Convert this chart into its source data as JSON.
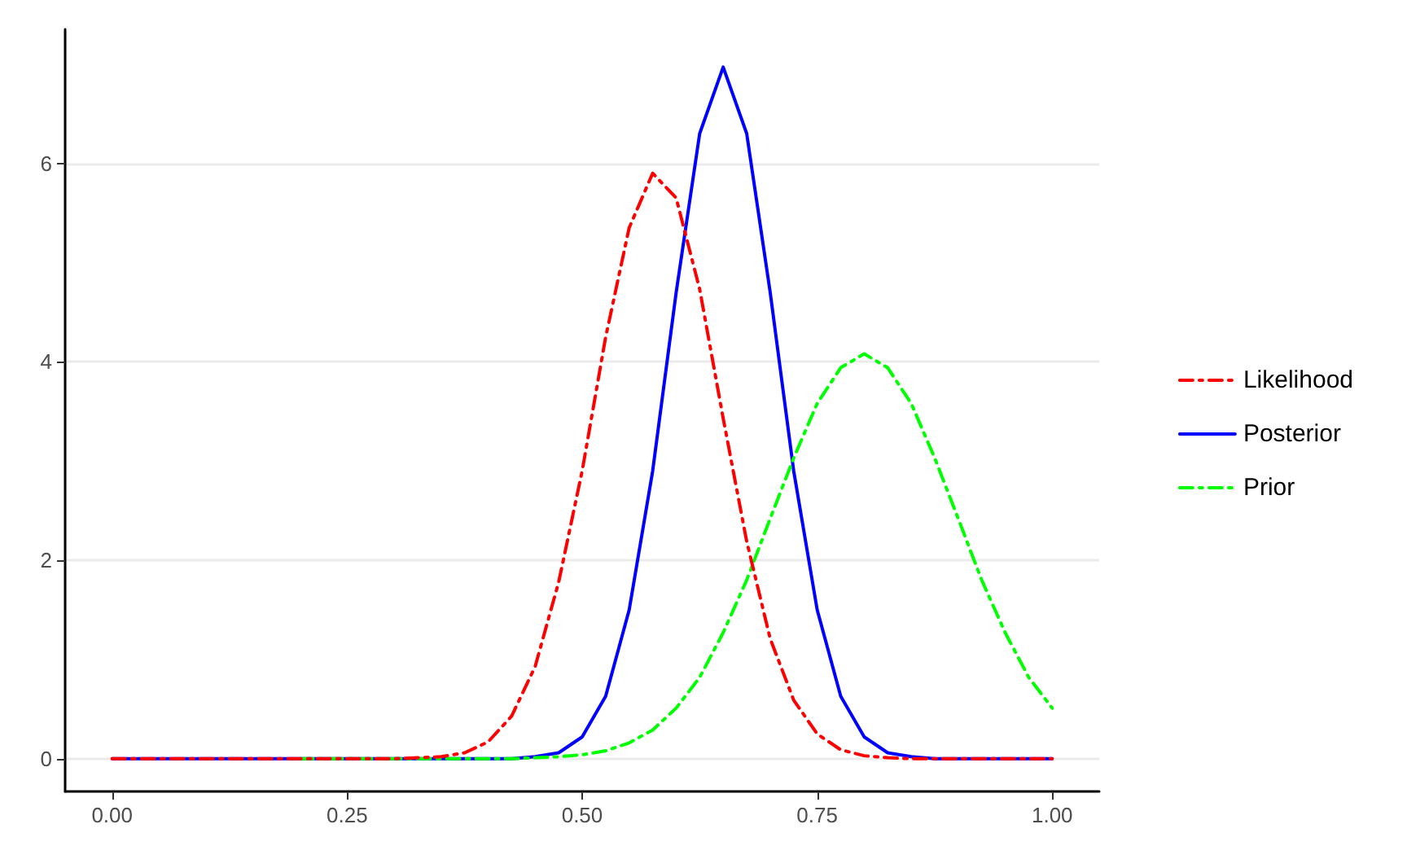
{
  "chart_data": {
    "type": "line",
    "x": [
      0,
      0.1,
      0.2,
      0.3,
      0.35,
      0.375,
      0.4,
      0.425,
      0.45,
      0.475,
      0.5,
      0.525,
      0.55,
      0.575,
      0.6,
      0.625,
      0.65,
      0.675,
      0.7,
      0.725,
      0.75,
      0.775,
      0.8,
      0.825,
      0.85,
      0.875,
      0.9,
      0.925,
      0.95,
      0.975,
      1.0
    ],
    "series": [
      {
        "name": "Likelihood",
        "color": "#ff0000",
        "line_style": "dashed",
        "values": [
          0,
          0,
          0,
          0,
          0.02,
          0.06,
          0.17,
          0.43,
          0.93,
          1.78,
          2.9,
          4.25,
          5.35,
          5.9,
          5.65,
          4.73,
          3.43,
          2.19,
          1.21,
          0.59,
          0.25,
          0.09,
          0.03,
          0.01,
          0,
          0,
          0,
          0,
          0,
          0,
          0
        ]
      },
      {
        "name": "Posterior",
        "color": "#0000ff",
        "line_style": "solid",
        "values": [
          0,
          0,
          0,
          0,
          0,
          0,
          0,
          0,
          0.02,
          0.06,
          0.22,
          0.63,
          1.5,
          2.9,
          4.7,
          6.3,
          6.97,
          6.3,
          4.7,
          2.9,
          1.5,
          0.63,
          0.22,
          0.06,
          0.02,
          0,
          0,
          0,
          0,
          0,
          0
        ]
      },
      {
        "name": "Prior",
        "color": "#00ff00",
        "line_style": "dashed",
        "values": [
          null,
          null,
          0,
          0,
          0,
          0,
          0,
          0,
          0.01,
          0.02,
          0.04,
          0.08,
          0.16,
          0.29,
          0.51,
          0.82,
          1.27,
          1.8,
          2.42,
          3.03,
          3.58,
          3.94,
          4.08,
          3.94,
          3.58,
          3.03,
          2.42,
          1.8,
          1.27,
          0.82,
          0.51
        ]
      }
    ],
    "xlim": [
      -0.05,
      1.05
    ],
    "xticks": [
      {
        "value": 0,
        "label": "0.00"
      },
      {
        "value": 0.25,
        "label": "0.25"
      },
      {
        "value": 0.5,
        "label": "0.50"
      },
      {
        "value": 0.75,
        "label": "0.75"
      },
      {
        "value": 1,
        "label": "1.00"
      }
    ],
    "ylim": [
      -0.33,
      7.35
    ],
    "yticks": [
      0,
      2,
      4,
      6
    ],
    "grid": "y",
    "legend": "right",
    "marker": "none"
  }
}
